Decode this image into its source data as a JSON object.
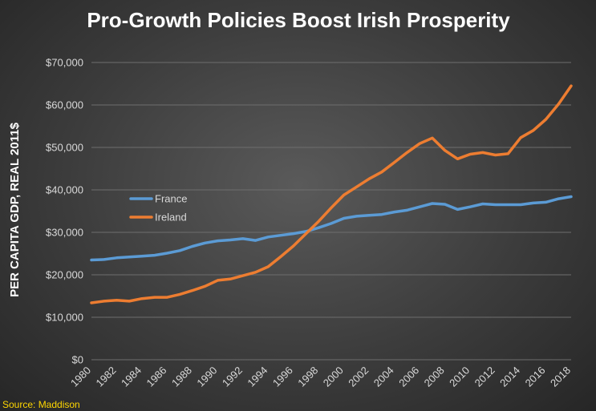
{
  "source": "Source: Maddison",
  "colors": {
    "france": "#5b9bd5",
    "ireland": "#ed7d31",
    "gridline": "#6e6e6e",
    "source": "#ffd700"
  },
  "chart_data": {
    "type": "line",
    "title": "Pro-Growth Policies Boost Irish Prosperity",
    "xlabel": "",
    "ylabel": "PER CAPITA GDP, REAL 2011$",
    "ylim": [
      0,
      70000
    ],
    "yticks": [
      0,
      10000,
      20000,
      30000,
      40000,
      50000,
      60000,
      70000
    ],
    "ytick_labels": [
      "$0",
      "$10,000",
      "$20,000",
      "$30,000",
      "$40,000",
      "$50,000",
      "$60,000",
      "$70,000"
    ],
    "xticks": [
      1980,
      1982,
      1984,
      1986,
      1988,
      1990,
      1992,
      1994,
      1996,
      1998,
      2000,
      2002,
      2004,
      2006,
      2008,
      2010,
      2012,
      2014,
      2016,
      2018
    ],
    "x": [
      1980,
      1981,
      1982,
      1983,
      1984,
      1985,
      1986,
      1987,
      1988,
      1989,
      1990,
      1991,
      1992,
      1993,
      1994,
      1995,
      1996,
      1997,
      1998,
      1999,
      2000,
      2001,
      2002,
      2003,
      2004,
      2005,
      2006,
      2007,
      2008,
      2009,
      2010,
      2011,
      2012,
      2013,
      2014,
      2015,
      2016,
      2017,
      2018
    ],
    "grid": true,
    "legend_position": "center-left",
    "series": [
      {
        "name": "France",
        "values": [
          23500,
          23600,
          24000,
          24200,
          24400,
          24600,
          25100,
          25700,
          26700,
          27500,
          28000,
          28200,
          28500,
          28100,
          28900,
          29300,
          29700,
          30200,
          31100,
          32100,
          33300,
          33800,
          34000,
          34200,
          34800,
          35200,
          36000,
          36800,
          36600,
          35400,
          36000,
          36700,
          36500,
          36500,
          36500,
          36900,
          37100,
          37900,
          38400
        ]
      },
      {
        "name": "Ireland",
        "values": [
          13400,
          13800,
          14000,
          13800,
          14400,
          14700,
          14700,
          15400,
          16300,
          17300,
          18700,
          19000,
          19800,
          20600,
          21900,
          24300,
          26800,
          29700,
          32600,
          35800,
          38800,
          40700,
          42600,
          44200,
          46500,
          48800,
          50900,
          52200,
          49300,
          47300,
          48400,
          48800,
          48200,
          48500,
          52300,
          54000,
          56600,
          60200,
          64500
        ]
      }
    ]
  }
}
